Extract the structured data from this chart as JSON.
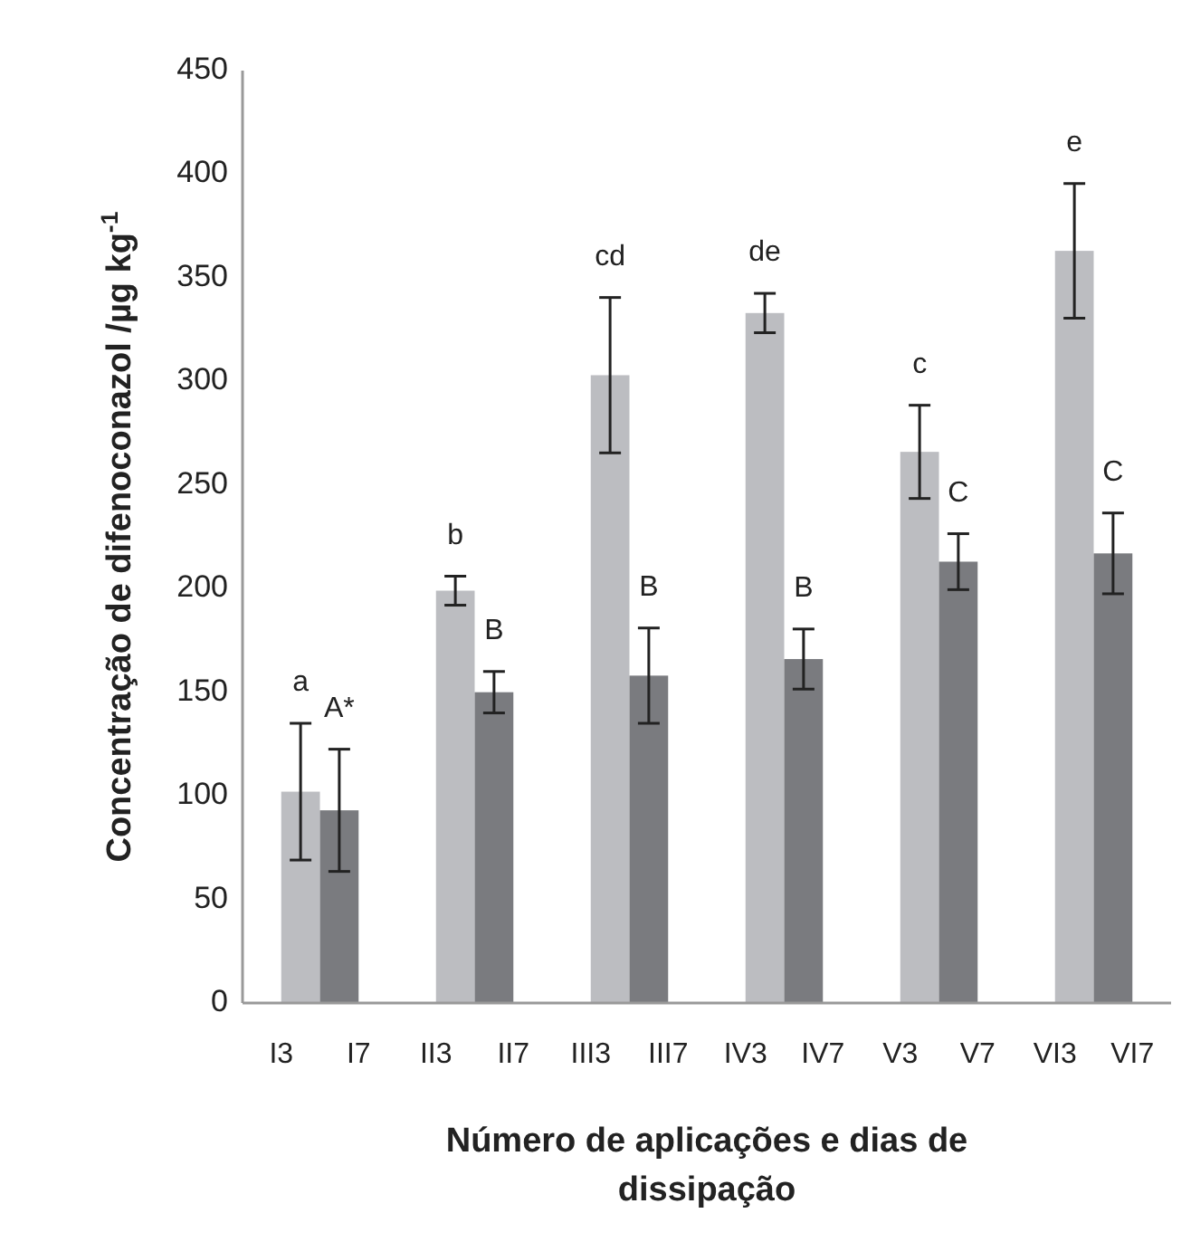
{
  "chart_data": {
    "type": "bar",
    "xlabel": "Número de aplicações e dias de dissipação",
    "ylabel": "Concentração de difenoconazol /µg kg$^{-1}$",
    "categories": [
      "I3",
      "I7",
      "II3",
      "II7",
      "III3",
      "III7",
      "IV3",
      "IV7",
      "V3",
      "V7",
      "VI3",
      "VI7"
    ],
    "values": [
      102,
      93,
      199,
      150,
      303,
      158,
      333,
      166,
      266,
      213,
      363,
      217
    ],
    "errors": [
      33,
      29.5,
      7,
      10,
      37.5,
      23,
      9.5,
      14.5,
      22.5,
      13.5,
      32.5,
      19.5
    ],
    "colors": [
      "#bcbdc1",
      "#7a7b7f",
      "#bcbdc1",
      "#7a7b7f",
      "#bcbdc1",
      "#7a7b7f",
      "#bcbdc1",
      "#7a7b7f",
      "#bcbdc1",
      "#7a7b7f",
      "#bcbdc1",
      "#7a7b7f"
    ],
    "ylim": [
      0,
      450
    ],
    "yticks": [
      0,
      50,
      100,
      150,
      200,
      250,
      300,
      350,
      400,
      450
    ],
    "grid": false,
    "annotations": [
      "a",
      "A*",
      "b",
      "B",
      "cd",
      "B",
      "de",
      "B",
      "c",
      "C",
      "e",
      "C"
    ]
  }
}
